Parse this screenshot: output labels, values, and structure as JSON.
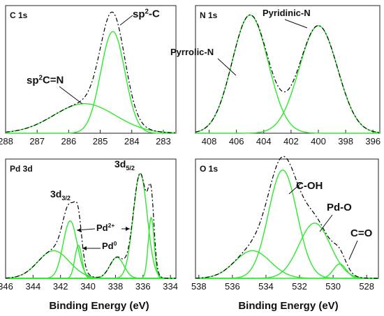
{
  "figure": {
    "xlabel": "Binding Energy (eV)",
    "colors": {
      "axis": "#222222",
      "envelope": "#000000",
      "component": "#2ee82e",
      "text": "#111111"
    }
  },
  "chart_data": [
    {
      "type": "line",
      "title": "C 1s",
      "xlim": [
        288,
        282.6
      ],
      "ylim": [
        0,
        1.08
      ],
      "x_ticks": [
        288,
        287,
        286,
        285,
        284,
        283
      ],
      "components": [
        {
          "label": "sp2C=N",
          "center": 285.5,
          "height": 0.25,
          "fwhm": 2.3
        },
        {
          "label": "sp2-C",
          "center": 284.6,
          "height": 0.86,
          "fwhm": 0.9
        }
      ],
      "annotations": [
        {
          "text": "sp²C=N",
          "x": 286.3,
          "y": 0.38
        },
        {
          "text": "sp²-C",
          "x": 284.2,
          "y": 0.97
        }
      ]
    },
    {
      "type": "line",
      "title": "N 1s",
      "xlim": [
        409,
        395.5
      ],
      "ylim": [
        0,
        1.08
      ],
      "x_ticks": [
        408,
        406,
        404,
        402,
        400,
        398,
        396
      ],
      "components": [
        {
          "label": "Pyrrolic-N",
          "center": 405,
          "height": 1.0,
          "fwhm": 3.1
        },
        {
          "label": "Pyridinic-N",
          "center": 400,
          "height": 0.91,
          "fwhm": 3.3
        }
      ],
      "annotations": [
        {
          "text": "Pyrrolic-N",
          "x": 406.3,
          "y": 0.58
        },
        {
          "text": "Pyridinic-N",
          "x": 399.4,
          "y": 0.98
        }
      ]
    },
    {
      "type": "line",
      "title": "Pd 3d",
      "xlim": [
        346,
        333.6
      ],
      "ylim": [
        0,
        1.08
      ],
      "x_ticks": [
        346,
        344,
        342,
        340,
        338,
        336,
        334
      ],
      "components": [
        {
          "label": "Pd2+ 3d3/2",
          "center": 342.5,
          "height": 0.25,
          "fwhm": 2.7
        },
        {
          "label": "Pd0 3d3/2",
          "center": 341.3,
          "height": 0.52,
          "fwhm": 1.2
        },
        {
          "label": "Pd0 3d3/2 b",
          "center": 340.7,
          "height": 0.3,
          "fwhm": 0.6
        },
        {
          "label": "Pd2+ 3d5/2",
          "center": 337.9,
          "height": 0.19,
          "fwhm": 1.2
        },
        {
          "label": "Pd0 3d5/2",
          "center": 336.2,
          "height": 0.95,
          "fwhm": 1.2
        },
        {
          "label": "Pd0 3d5/2 b",
          "center": 335.4,
          "height": 0.55,
          "fwhm": 0.5
        }
      ],
      "annotations": [
        {
          "text": "3d3/2",
          "x": 342.6,
          "y": 0.75
        },
        {
          "text": "3d5/2",
          "x": 337.2,
          "y": 1.05
        },
        {
          "text": "Pd2+",
          "x": 339.2,
          "y": 0.55
        },
        {
          "text": "Pd0",
          "x": 338.6,
          "y": 0.34
        }
      ]
    },
    {
      "type": "line",
      "title": "O 1s",
      "xlim": [
        538.2,
        527.3
      ],
      "ylim": [
        0,
        1.08
      ],
      "x_ticks": [
        538,
        536,
        534,
        532,
        530,
        528
      ],
      "components": [
        {
          "label": "",
          "center": 534.8,
          "height": 0.25,
          "fwhm": 2.5
        },
        {
          "label": "C-OH",
          "center": 533.0,
          "height": 0.98,
          "fwhm": 2.0
        },
        {
          "label": "Pd-O",
          "center": 531.1,
          "height": 0.5,
          "fwhm": 2.2
        },
        {
          "label": "C=O",
          "center": 529.6,
          "height": 0.13,
          "fwhm": 0.9
        }
      ],
      "annotations": [
        {
          "text": "C-OH",
          "x": 531.5,
          "y": 0.98
        },
        {
          "text": "Pd-O",
          "x": 529.6,
          "y": 0.75
        },
        {
          "text": "C=O",
          "x": 528.4,
          "y": 0.45
        }
      ]
    }
  ]
}
